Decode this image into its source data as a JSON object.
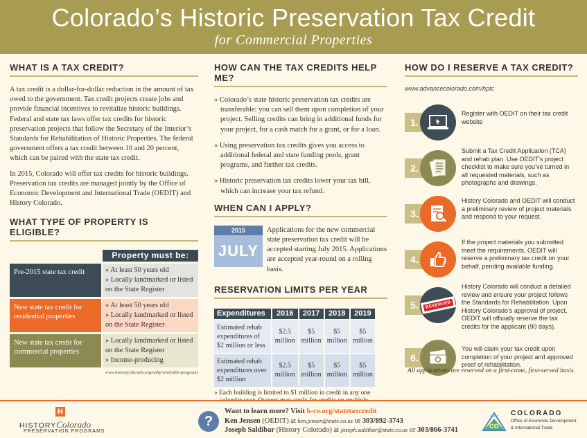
{
  "banner": {
    "title": "Colorado’s Historic Preservation Tax Credit",
    "subtitle": "for Commercial Properties"
  },
  "col1": {
    "what_heading": "WHAT IS A TAX CREDIT?",
    "what_p1": "A tax credit is a dollar-for-dollar reduction in the amount of tax owed to the government. Tax credit projects create jobs and provide financial incentives to revitalize historic buildings. Federal and state tax laws offer tax credits for historic preservation projects that follow the Secretary of the Interior’s Standards for Rehabilitation of Historic Properties. The federal government offers a tax credit between 10 and 20 percent, which can be paired with the state tax credit.",
    "what_p2": "In 2015, Colorado will offer tax credits for historic buildings. Preservation tax credits are managed jointly by the Office of Economic Development and International Trade (OEDIT) and History Colorado.",
    "eligible_heading": "WHAT TYPE OF PROPERTY IS ELIGIBLE?",
    "table_header": "Property must be:",
    "rows": [
      {
        "label": "Pre-2015 state tax credit",
        "reqs": [
          "At least 50 years old",
          "Locally landmarked or listed on the State Register"
        ]
      },
      {
        "label": "New state tax credit for residential properties",
        "reqs": [
          "At least 50 years old",
          "Locally landmarked or listed on the State Register"
        ]
      },
      {
        "label": "New state tax credit for commercial properties",
        "reqs": [
          "Locally landmarked or listed on the State Register",
          "Income-producing"
        ]
      }
    ],
    "table_url": "www.historycolorado.org/oahp/available-programs"
  },
  "col2": {
    "help_heading": "HOW CAN THE TAX CREDITS HELP ME?",
    "help_items": [
      "Colorado’s state historic preservation tax credits are transferable: you can sell them upon completion of your project. Selling credits can bring in additional funds for your project, for a cash match for a grant, or for a loan.",
      "Using preservation tax credits gives you access to additional federal and state funding pools, grant programs, and further tax credits.",
      "Historic preservation tax credits lower your tax bill, which can increase your tax refund."
    ],
    "when_heading": "WHEN CAN I APPLY?",
    "when_year": "2015",
    "when_month": "JULY",
    "when_text": "Applications for the new commercial state preservation tax credit will be accepted starting July 2015. Applications are accepted year-round on a rolling basis.",
    "limits_heading": "RESERVATION LIMITS PER YEAR",
    "limits_table": {
      "headers": [
        "Expenditures",
        "2016",
        "2017",
        "2018",
        "2019"
      ],
      "rows": [
        {
          "desc": "Estimated rehab expenditures of $2 million or less",
          "values": [
            "$2.5 million",
            "$5 million",
            "$5 million",
            "$5 million"
          ]
        },
        {
          "desc": "Estimated rehab expenditures over $2 million",
          "values": [
            "$2.5 million",
            "$5 million",
            "$5 million",
            "$5 million"
          ]
        }
      ]
    },
    "limits_note": "Each building is limited to $1 million in credit in any one calendar year. Owners may apply for credits on multiple properties."
  },
  "col3": {
    "reserve_heading": "HOW DO I RESERVE A TAX CREDIT?",
    "reserve_url": "www.advancecolorado.com/hptc",
    "steps": [
      {
        "num": "1.",
        "icon": "computer-icon",
        "text": "Register with OEDIT on their tax credit website"
      },
      {
        "num": "2.",
        "icon": "documents-icon",
        "text": "Submit a Tax Credit Application (TCA) and rehab plan. Use OEDIT’s project checklist to make sure you’ve turned in all requested materials, such as photographs and drawings."
      },
      {
        "num": "3.",
        "icon": "magnify-document-icon",
        "text": "History Colorado and OEDIT will conduct a preliminary review of project materials and respond to your request."
      },
      {
        "num": "4.",
        "icon": "thumbs-up-icon",
        "text": "If the project materials you submitted meet the requirements, OEDIT will reserve a preliminary tax credit on your behalf, pending available funding."
      },
      {
        "num": "5.",
        "icon": "reserved-ticket-icon",
        "text": "History Colorado will conduct a detailed review and ensure your project follows the Standards for Rehabilitation. Upon History Colorado’s approval of project, OEDIT will officially reserve the tax credits for the applicant (90 days).",
        "stamp": "RESERVED"
      },
      {
        "num": "6.",
        "icon": "money-icon",
        "text": "You will claim your tax credit upon completion of your project and approved proof of rehabilitation."
      }
    ],
    "closing": "All applications are reserved on a first-come, first-served basis."
  },
  "footer": {
    "logo_left_history": "HISTORY",
    "logo_left_colorado": "Colorado",
    "logo_left_sub": "PRESERVATION PROGRAMS",
    "logo_left_mark": "H",
    "question_mark": "?",
    "learn_prefix": "Want to learn more? Visit ",
    "learn_link": "h-co.org/statetaxcredit",
    "contact1_name": "Ken Jensen",
    "contact1_org": " (OEDIT) at ",
    "contact1_email": "ken.jensen@state.co.us",
    "contact1_or": " or ",
    "contact1_phone": "303/892-3743",
    "contact2_name": "Joseph Saldibar",
    "contact2_org": " (History Colorado) at ",
    "contact2_email": "joseph.saldibar@state.co.us",
    "contact2_or": " or ",
    "contact2_phone": "303/866-3741",
    "logo_right_title": "COLORADO",
    "logo_right_sub1": "Office of Economic Development",
    "logo_right_sub2": "& International Trade",
    "logo_right_mark_text": "OEDIT",
    "logo_right_co": "CO"
  },
  "colors": {
    "banner": "#a79c52",
    "dark": "#3e4d55",
    "orange": "#eb6a28",
    "olive": "#8c8a52",
    "blue": "#5d7ca8",
    "background": "#fdf8e7"
  }
}
